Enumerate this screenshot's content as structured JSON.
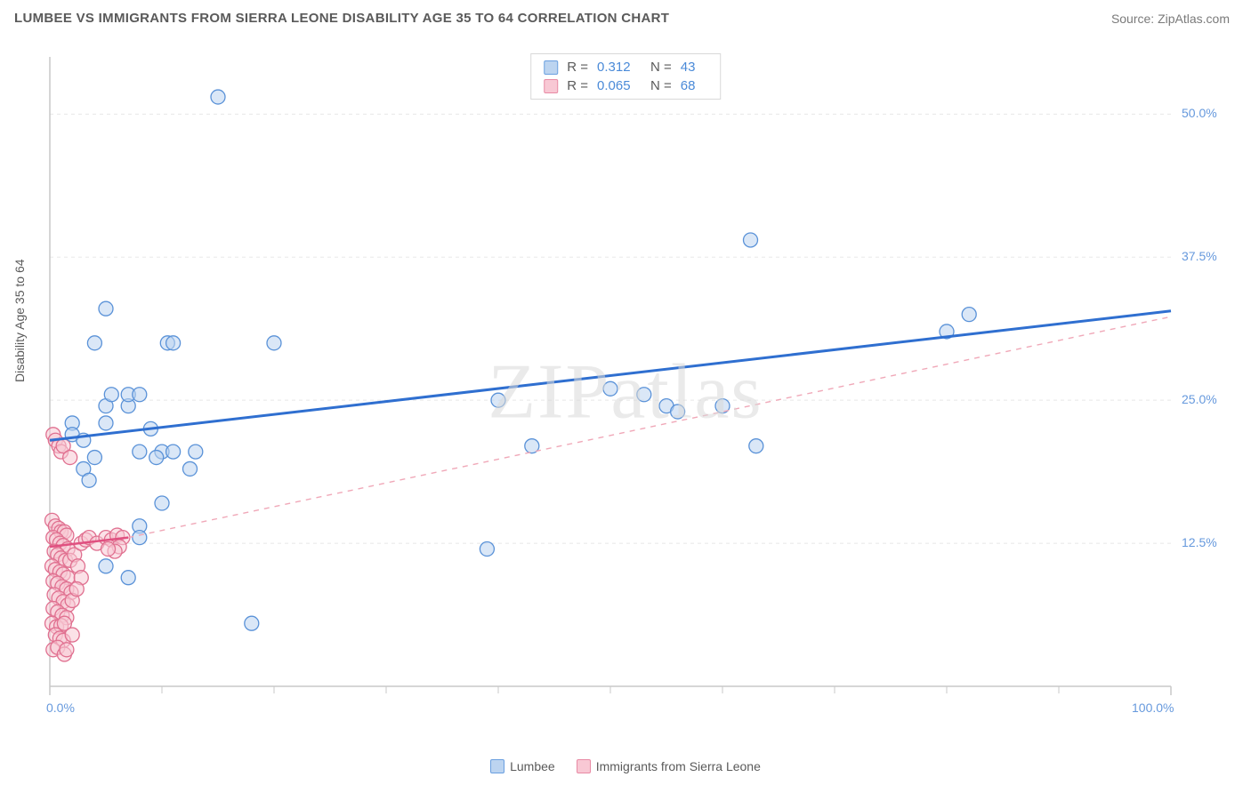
{
  "title": "LUMBEE VS IMMIGRANTS FROM SIERRA LEONE DISABILITY AGE 35 TO 64 CORRELATION CHART",
  "source_prefix": "Source: ",
  "source_link": "ZipAtlas.com",
  "y_axis_label": "Disability Age 35 to 64",
  "watermark": "ZIPatlas",
  "legend": {
    "series": [
      {
        "label": "Lumbee",
        "fill": "#bcd4f0",
        "stroke": "#6a9fe0"
      },
      {
        "label": "Immigrants from Sierra Leone",
        "fill": "#f8c8d4",
        "stroke": "#e88aa4"
      }
    ]
  },
  "top_legend": {
    "r_label": "R = ",
    "n_label": "N = ",
    "rows": [
      {
        "fill": "#bcd4f0",
        "stroke": "#6a9fe0",
        "r": "0.312",
        "n": "43"
      },
      {
        "fill": "#f8c8d4",
        "stroke": "#e88aa4",
        "r": "0.065",
        "n": "68"
      }
    ]
  },
  "chart": {
    "type": "scatter",
    "plot_bg": "#ffffff",
    "grid_color": "#e8e8e8",
    "axis_color": "#c8c8c8",
    "x_domain": [
      0,
      100
    ],
    "y_domain": [
      0,
      55
    ],
    "x_ticks_major": [
      0,
      100
    ],
    "x_tick_labels": [
      "0.0%",
      "100.0%"
    ],
    "x_ticks_minor": [
      10,
      20,
      30,
      40,
      50,
      60,
      70,
      80,
      90
    ],
    "y_ticks": [
      12.5,
      25.0,
      37.5,
      50.0
    ],
    "y_tick_labels": [
      "12.5%",
      "25.0%",
      "37.5%",
      "50.0%"
    ],
    "marker_radius": 8,
    "marker_opacity": 0.55,
    "series": [
      {
        "name": "Lumbee",
        "fill": "#bcd4f0",
        "stroke": "#5a92d8",
        "trend": {
          "x1": 0,
          "y1": 21.5,
          "x2": 100,
          "y2": 32.8,
          "stroke": "#2f6fd0",
          "width": 3,
          "dash": ""
        },
        "points": [
          [
            15,
            51.5
          ],
          [
            62.5,
            39
          ],
          [
            82,
            32.5
          ],
          [
            80,
            31
          ],
          [
            50,
            26
          ],
          [
            53,
            25.5
          ],
          [
            60,
            24.5
          ],
          [
            55,
            24.5
          ],
          [
            56,
            24
          ],
          [
            43,
            21
          ],
          [
            63,
            21
          ],
          [
            39,
            12
          ],
          [
            40,
            25
          ],
          [
            5,
            33
          ],
          [
            4,
            30
          ],
          [
            10.5,
            30
          ],
          [
            11,
            30
          ],
          [
            20,
            30
          ],
          [
            2,
            23
          ],
          [
            2,
            22
          ],
          [
            3,
            21.5
          ],
          [
            4,
            20
          ],
          [
            3,
            19
          ],
          [
            5,
            24.5
          ],
          [
            7,
            24.5
          ],
          [
            5.5,
            25.5
          ],
          [
            7,
            25.5
          ],
          [
            8,
            25.5
          ],
          [
            5,
            23
          ],
          [
            9,
            22.5
          ],
          [
            8,
            20.5
          ],
          [
            10,
            20.5
          ],
          [
            11,
            20.5
          ],
          [
            9.5,
            20
          ],
          [
            3.5,
            18
          ],
          [
            10,
            16
          ],
          [
            8,
            14
          ],
          [
            8,
            13
          ],
          [
            5,
            10.5
          ],
          [
            7,
            9.5
          ],
          [
            18,
            5.5
          ],
          [
            12.5,
            19
          ],
          [
            13,
            20.5
          ]
        ]
      },
      {
        "name": "Immigrants from Sierra Leone",
        "fill": "#f8c8d4",
        "stroke": "#e07090",
        "trend_solid": {
          "x1": 0,
          "y1": 12.2,
          "x2": 7,
          "y2": 13.0,
          "stroke": "#e05080",
          "width": 2.5
        },
        "trend_dashed": {
          "x1": 7,
          "y1": 13.0,
          "x2": 100,
          "y2": 32.3,
          "stroke": "#f0a8b8",
          "width": 1.4,
          "dash": "6 6"
        },
        "points": [
          [
            0.3,
            22
          ],
          [
            0.5,
            21.5
          ],
          [
            0.8,
            21
          ],
          [
            1.0,
            20.5
          ],
          [
            1.2,
            21
          ],
          [
            1.8,
            20
          ],
          [
            0.2,
            14.5
          ],
          [
            0.5,
            14
          ],
          [
            0.8,
            13.8
          ],
          [
            1.0,
            13.5
          ],
          [
            1.3,
            13.5
          ],
          [
            1.5,
            13.2
          ],
          [
            0.3,
            13
          ],
          [
            0.6,
            12.8
          ],
          [
            0.9,
            12.5
          ],
          [
            1.2,
            12.3
          ],
          [
            1.6,
            12
          ],
          [
            0.4,
            11.8
          ],
          [
            0.7,
            11.5
          ],
          [
            1.0,
            11.2
          ],
          [
            1.4,
            11
          ],
          [
            1.8,
            11
          ],
          [
            0.2,
            10.5
          ],
          [
            0.5,
            10.2
          ],
          [
            0.9,
            10
          ],
          [
            1.2,
            9.8
          ],
          [
            1.6,
            9.5
          ],
          [
            0.3,
            9.2
          ],
          [
            0.7,
            9
          ],
          [
            1.1,
            8.7
          ],
          [
            1.5,
            8.5
          ],
          [
            1.9,
            8.2
          ],
          [
            0.4,
            8
          ],
          [
            0.8,
            7.7
          ],
          [
            1.2,
            7.4
          ],
          [
            1.6,
            7.1
          ],
          [
            2.0,
            7.5
          ],
          [
            0.3,
            6.8
          ],
          [
            0.7,
            6.5
          ],
          [
            1.1,
            6.2
          ],
          [
            1.5,
            6
          ],
          [
            0.2,
            5.5
          ],
          [
            0.6,
            5.2
          ],
          [
            1.0,
            5.3
          ],
          [
            1.3,
            5.5
          ],
          [
            0.5,
            4.5
          ],
          [
            0.9,
            4.2
          ],
          [
            1.2,
            4
          ],
          [
            0.3,
            3.2
          ],
          [
            0.7,
            3.4
          ],
          [
            1.3,
            2.8
          ],
          [
            2.2,
            11.5
          ],
          [
            2.5,
            10.5
          ],
          [
            2.8,
            9.5
          ],
          [
            2.4,
            8.5
          ],
          [
            1.5,
            3.2
          ],
          [
            2.0,
            4.5
          ],
          [
            2.8,
            12.5
          ],
          [
            3.2,
            12.8
          ],
          [
            3.5,
            13
          ],
          [
            4.2,
            12.5
          ],
          [
            5.0,
            13
          ],
          [
            5.5,
            12.8
          ],
          [
            6.0,
            13.2
          ],
          [
            6.5,
            13
          ],
          [
            6.2,
            12.2
          ],
          [
            5.8,
            11.8
          ],
          [
            5.2,
            12.0
          ]
        ]
      }
    ]
  }
}
